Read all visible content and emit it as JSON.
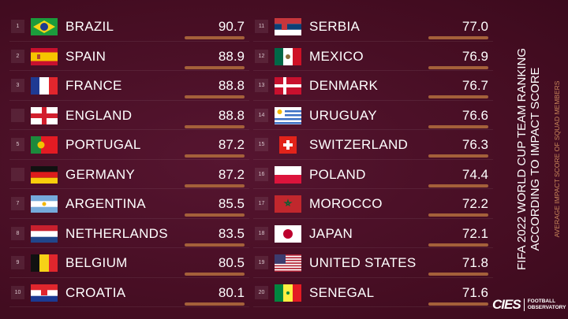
{
  "title": "FIFA 2022 WORLD CUP TEAM RANKING\nACCORDING TO IMPACT SCORE",
  "title_line1": "FIFA 2022 WORLD CUP TEAM RANKING",
  "title_line2": "ACCORDING TO IMPACT SCORE",
  "subtitle": "AVERAGE IMPACT SCORE OF SQUAD MEMBERS",
  "logo": {
    "brand": "CIES",
    "tagline_1": "FOOTBALL",
    "tagline_2": "OBSERVATORY"
  },
  "colors": {
    "background": "#4b0f26",
    "bar": "#a4603a",
    "subtitle": "#c9865a"
  },
  "chart_data": {
    "type": "table",
    "title": "FIFA 2022 WORLD CUP TEAM RANKING ACCORDING TO IMPACT SCORE",
    "subtitle": "AVERAGE IMPACT SCORE OF SQUAD MEMBERS",
    "rows": [
      {
        "rank": "1",
        "country": "BRAZIL",
        "flag": "br",
        "score": 90.7
      },
      {
        "rank": "2",
        "country": "SPAIN",
        "flag": "es",
        "score": 88.9
      },
      {
        "rank": "3",
        "country": "FRANCE",
        "flag": "fr",
        "score": 88.8
      },
      {
        "rank": "",
        "country": "ENGLAND",
        "flag": "en",
        "score": 88.8
      },
      {
        "rank": "5",
        "country": "PORTUGAL",
        "flag": "pt",
        "score": 87.2
      },
      {
        "rank": "",
        "country": "GERMANY",
        "flag": "de",
        "score": 87.2
      },
      {
        "rank": "7",
        "country": "ARGENTINA",
        "flag": "ar",
        "score": 85.5
      },
      {
        "rank": "8",
        "country": "NETHERLANDS",
        "flag": "nl",
        "score": 83.5
      },
      {
        "rank": "9",
        "country": "BELGIUM",
        "flag": "be",
        "score": 80.5
      },
      {
        "rank": "10",
        "country": "CROATIA",
        "flag": "hr",
        "score": 80.1
      },
      {
        "rank": "11",
        "country": "SERBIA",
        "flag": "rs",
        "score": 77.0
      },
      {
        "rank": "12",
        "country": "MEXICO",
        "flag": "mx",
        "score": 76.9
      },
      {
        "rank": "13",
        "country": "DENMARK",
        "flag": "dk",
        "score": 76.7
      },
      {
        "rank": "14",
        "country": "URUGUAY",
        "flag": "uy",
        "score": 76.6
      },
      {
        "rank": "15",
        "country": "SWITZERLAND",
        "flag": "ch",
        "score": 76.3
      },
      {
        "rank": "16",
        "country": "POLAND",
        "flag": "pl",
        "score": 74.4
      },
      {
        "rank": "17",
        "country": "MOROCCO",
        "flag": "ma",
        "score": 72.2
      },
      {
        "rank": "18",
        "country": "JAPAN",
        "flag": "jp",
        "score": 72.1
      },
      {
        "rank": "19",
        "country": "UNITED STATES",
        "flag": "us",
        "score": 71.8
      },
      {
        "rank": "20",
        "country": "SENEGAL",
        "flag": "sn",
        "score": 71.6
      }
    ]
  }
}
